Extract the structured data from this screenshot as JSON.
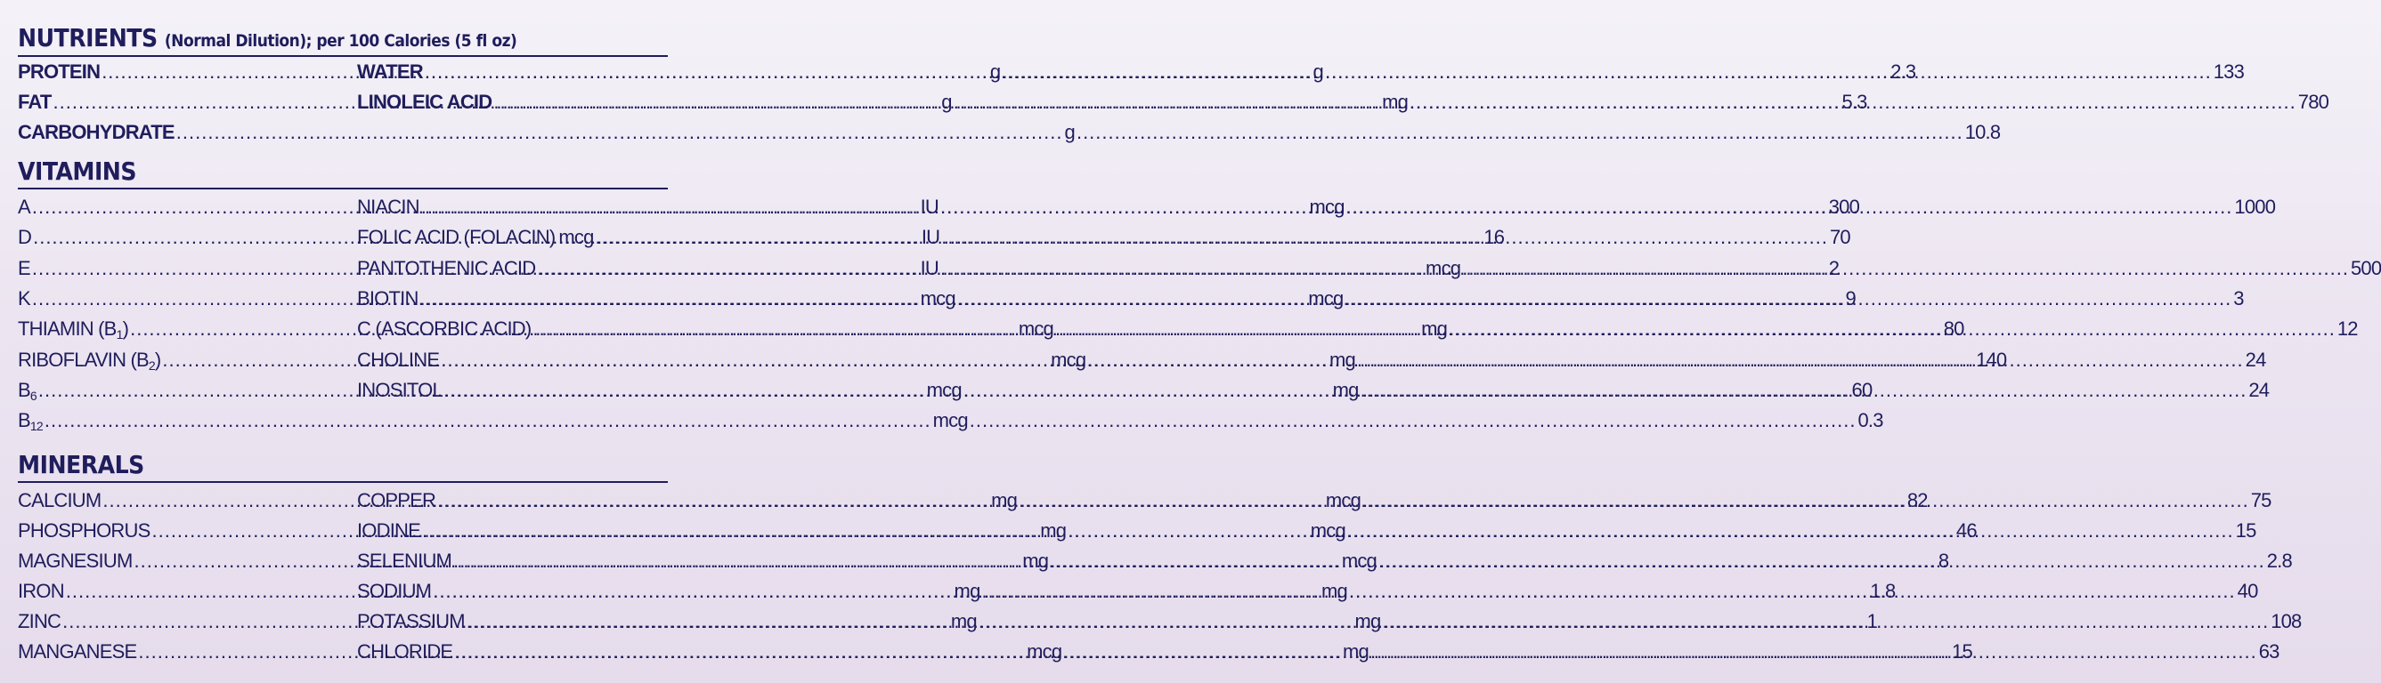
{
  "header": {
    "title": "NUTRIENTS",
    "subtitle": "(Normal Dilution); per 100 Calories (5 fl oz)"
  },
  "nutrients": {
    "left": [
      {
        "name": "PROTEIN",
        "unit": "g",
        "value": "2.3"
      },
      {
        "name": "FAT",
        "unit": "g",
        "value": "5.3"
      },
      {
        "name": "CARBOHYDRATE",
        "unit": "g",
        "value": "10.8"
      }
    ],
    "right": [
      {
        "name": "WATER",
        "unit": "g",
        "value": "133"
      },
      {
        "name": "LINOLEIC ACID",
        "unit": "mg",
        "value": "780"
      }
    ]
  },
  "vitamins": {
    "title": "VITAMINS",
    "left": [
      {
        "name": "A",
        "unit": "IU",
        "value": "300"
      },
      {
        "name": "D",
        "unit": "IU",
        "value": "70"
      },
      {
        "name": "E",
        "unit": "IU",
        "value": "2"
      },
      {
        "name": "K",
        "unit": "mcg",
        "value": "9"
      },
      {
        "name": "THIAMIN (B1)",
        "unit": "mcg",
        "value": "80"
      },
      {
        "name": "RIBOFLAVIN (B2)",
        "unit": "mcg",
        "value": "140"
      },
      {
        "name": "B6",
        "unit": "mcg",
        "value": "60"
      },
      {
        "name": "B12",
        "unit": "mcg",
        "value": "0.3"
      }
    ],
    "right": [
      {
        "name": "NIACIN",
        "unit": "mcg",
        "value": "1000"
      },
      {
        "name": "FOLIC ACID (FOLACIN)",
        "unit": "mcg",
        "value": "16"
      },
      {
        "name": "PANTOTHENIC ACID",
        "unit": "mcg",
        "value": "500"
      },
      {
        "name": "BIOTIN",
        "unit": "mcg",
        "value": "3"
      },
      {
        "name": "C (ASCORBIC ACID)",
        "unit": "mg",
        "value": "12"
      },
      {
        "name": "CHOLINE",
        "unit": "mg",
        "value": "24"
      },
      {
        "name": "INOSITOL",
        "unit": "mg",
        "value": "24"
      }
    ]
  },
  "minerals": {
    "title": "MINERALS",
    "left": [
      {
        "name": "CALCIUM",
        "unit": "mg",
        "value": "82"
      },
      {
        "name": "PHOSPHORUS",
        "unit": "mg",
        "value": "46"
      },
      {
        "name": "MAGNESIUM",
        "unit": "mg",
        "value": "8"
      },
      {
        "name": "IRON",
        "unit": "mg",
        "value": "1.8"
      },
      {
        "name": "ZINC",
        "unit": "mg",
        "value": "1"
      },
      {
        "name": "MANGANESE",
        "unit": "mcg",
        "value": "15"
      }
    ],
    "right": [
      {
        "name": "COPPER",
        "unit": "mcg",
        "value": "75"
      },
      {
        "name": "IODINE",
        "unit": "mcg",
        "value": "15"
      },
      {
        "name": "SELENIUM",
        "unit": "mcg",
        "value": "2.8"
      },
      {
        "name": "SODIUM",
        "unit": "mg",
        "value": "40"
      },
      {
        "name": "POTASSIUM",
        "unit": "mg",
        "value": "108"
      },
      {
        "name": "CHLORIDE",
        "unit": "mg",
        "value": "63"
      }
    ]
  },
  "colors": {
    "text": "#1f1d5c",
    "background": "#ece5f1"
  }
}
